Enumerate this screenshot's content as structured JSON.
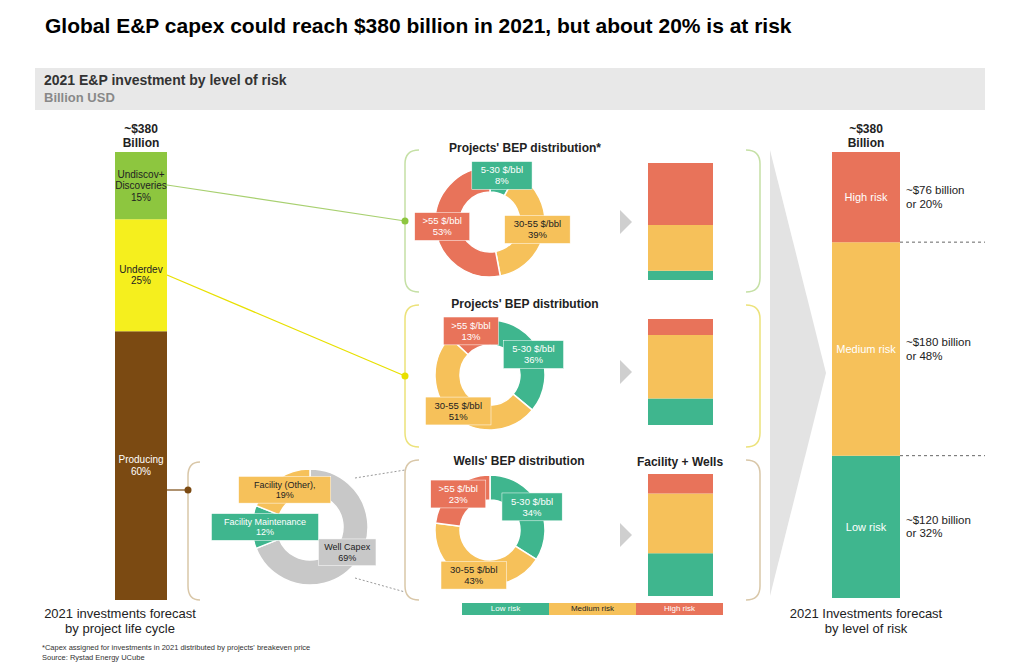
{
  "title": "Global E&P capex could reach $380 billion in 2021, but about 20% is at risk",
  "subtitle": "2021 E&P investment by level of risk",
  "unit": "Billion USD",
  "footnote": "*Capex assigned for investments in 2021 distributed by projects' breakeven price",
  "source": "Source: Rystad Energy UCube",
  "chart_data": [
    {
      "type": "bar",
      "title": "~$380\nBillion",
      "x_label": "2021 investments forecast\nby project life cycle",
      "stacked": true,
      "data_labels": true,
      "tick_labels": false,
      "categories": [
        null
      ],
      "series": [
        {
          "name": "Producing",
          "color": "#7b4a12",
          "values": [
            60
          ],
          "value_labels": [
            "60%"
          ]
        },
        {
          "name": "Underdev",
          "color": "#f5ef1e",
          "values": [
            25
          ],
          "value_labels": [
            "25%"
          ]
        },
        {
          "name": "Undiscov+\nDiscoveries",
          "color": "#8dc63f",
          "values": [
            15
          ],
          "value_labels": [
            "15%"
          ]
        }
      ]
    },
    {
      "type": "donut",
      "title": "Projects' BEP distribution*",
      "data_labels": true,
      "categories": [
        "5-30 $/bbl",
        "30-55 $/bbl",
        ">55 $/bbl"
      ],
      "values": [
        8,
        39,
        53
      ],
      "value_labels": [
        "8%",
        "39%",
        "53%"
      ],
      "colors": [
        "#3fb68e",
        "#f6c15a",
        "#e8735a"
      ]
    },
    {
      "type": "donut",
      "title": "Projects' BEP distribution",
      "data_labels": true,
      "categories": [
        "5-30 $/bbl",
        "30-55 $/bbl",
        ">55 $/bbl"
      ],
      "values": [
        36,
        51,
        13
      ],
      "value_labels": [
        "36%",
        "51%",
        "13%"
      ],
      "colors": [
        "#3fb68e",
        "#f6c15a",
        "#e8735a"
      ]
    },
    {
      "type": "donut",
      "title": "Wells' BEP distribution",
      "data_labels": true,
      "categories": [
        "5-30 $/bbl",
        "30-55 $/bbl",
        ">55 $/bbl"
      ],
      "values": [
        34,
        43,
        23
      ],
      "value_labels": [
        "34%",
        "43%",
        "23%"
      ],
      "colors": [
        "#3fb68e",
        "#f6c15a",
        "#e8735a"
      ]
    },
    {
      "type": "donut",
      "data_labels": true,
      "categories": [
        "Well Capex",
        "Facility Maintenance",
        "Facility (Other),"
      ],
      "values": [
        69,
        12,
        19
      ],
      "value_labels": [
        "69%",
        "12%",
        "19%"
      ],
      "colors": [
        "#c8c8c8",
        "#3fb68e",
        "#f6c15a"
      ]
    },
    {
      "type": "bar",
      "stacked": true,
      "legend": "bottom",
      "tick_labels": false,
      "categories": [
        null,
        null,
        "Facility + Wells"
      ],
      "series": [
        {
          "name": "Low risk",
          "color": "#3fb68e",
          "values": [
            8,
            25,
            35
          ]
        },
        {
          "name": "Medium risk",
          "color": "#f6c15a",
          "values": [
            39,
            60,
            49
          ]
        },
        {
          "name": "High risk",
          "color": "#e8735a",
          "values": [
            53,
            15,
            16
          ]
        }
      ]
    },
    {
      "type": "bar",
      "title": "~$380\nBillion",
      "x_label": "2021 Investments forecast\nby level of risk",
      "stacked": true,
      "data_labels": true,
      "tick_labels": false,
      "categories": [
        null
      ],
      "series": [
        {
          "name": "Low risk",
          "color": "#3fb68e",
          "values": [
            120
          ],
          "value_labels": [
            "~$120 billion\nor 32%"
          ]
        },
        {
          "name": "Medium risk",
          "color": "#f6c15a",
          "values": [
            180
          ],
          "value_labels": [
            "~$180 billion\nor 48%"
          ]
        },
        {
          "name": "High risk",
          "color": "#e8735a",
          "values": [
            76
          ],
          "value_labels": [
            "~$76 billion\nor 20%"
          ]
        }
      ]
    }
  ]
}
